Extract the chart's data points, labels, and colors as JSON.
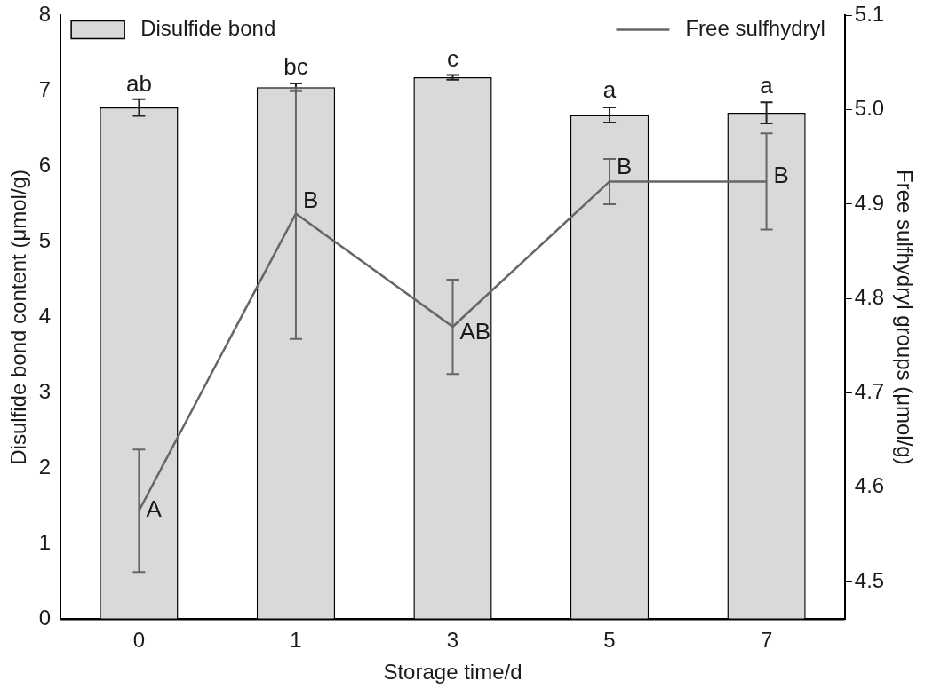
{
  "chart_data": {
    "type": "bar",
    "categories": [
      "0",
      "1",
      "3",
      "5",
      "7"
    ],
    "xlabel": "Storage time/d",
    "ylabel": "Disulfide bond content (μmol/g)",
    "y2label": "Free sulfhydryl groups (μmol/g)",
    "ylim": [
      0,
      8
    ],
    "yticks": [
      0,
      1,
      2,
      3,
      4,
      5,
      6,
      7,
      8
    ],
    "y2lim": [
      4.46,
      5.1
    ],
    "y2ticks": [
      4.5,
      4.6,
      4.7,
      4.8,
      4.9,
      {
        "value": 5,
        "label": "5.0"
      },
      5.1
    ],
    "series": [
      {
        "name": "Disulfide bond",
        "color": "#d9d9d9",
        "values": [
          6.78,
          7.05,
          7.18,
          6.68,
          6.71
        ],
        "errors": [
          0.11,
          0.05,
          0.03,
          0.1,
          0.14
        ]
      },
      {
        "name": "Free sulfhydryl",
        "type": "line",
        "axis": "y2",
        "color": "#666666",
        "values": [
          4.575,
          4.89,
          4.77,
          4.924,
          4.924
        ],
        "errors": [
          0.065,
          0.133,
          0.05,
          0.024,
          0.051
        ]
      }
    ],
    "annotations": [
      {
        "text": "ab",
        "x": "0",
        "y": 6.88
      },
      {
        "text": "bc",
        "x": "1",
        "y": 7.1
      },
      {
        "text": "c",
        "x": "3",
        "y": 7.21
      },
      {
        "text": "a",
        "x": "5",
        "y": 6.79
      },
      {
        "text": "a",
        "x": "7",
        "y": 6.85
      },
      {
        "text": "A",
        "x": "0",
        "y": 1.44
      },
      {
        "text": "B",
        "x": "1",
        "y": 5.54
      },
      {
        "text": "AB",
        "x": "3",
        "y": 3.79
      },
      {
        "text": "B",
        "x": "5",
        "y": 5.98
      },
      {
        "text": "B",
        "x": "7",
        "y": 5.86
      }
    ],
    "legend": "top",
    "grid": false,
    "marker": "none",
    "line_style": "solid"
  }
}
